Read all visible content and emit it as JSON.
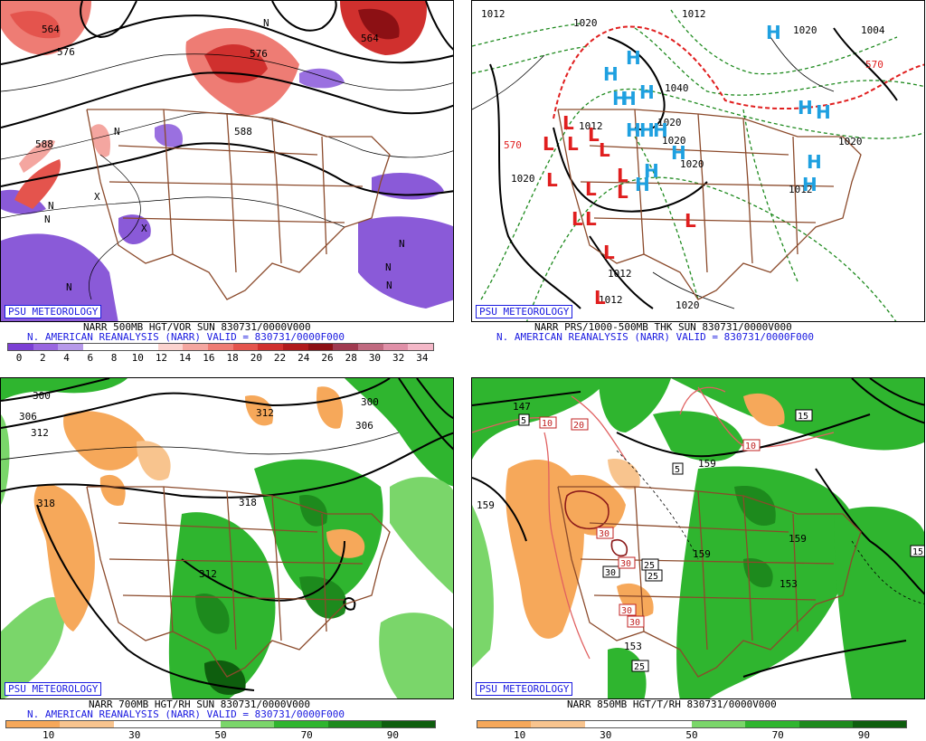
{
  "panels": {
    "p500": {
      "logo": "PSU METEOROLOGY",
      "title_line1": "NARR 500MB HGT/VOR SUN 830731/0000V000",
      "title_line2": "N. AMERICAN REANALYSIS (NARR) VALID = 830731/0000F000",
      "colorbar_ticks": [
        "0",
        "2",
        "4",
        "6",
        "8",
        "10",
        "12",
        "14",
        "16",
        "18",
        "20",
        "22",
        "24",
        "26",
        "28",
        "30",
        "32",
        "34"
      ],
      "colorbar_colors": [
        "#7b3fd4",
        "#9966e0",
        "#b699ea",
        "#ffffff",
        "#ffffff",
        "#ffffff",
        "#fbd3cf",
        "#f4a6a0",
        "#ee7c74",
        "#e4544d",
        "#d0302e",
        "#b01a1c",
        "#8c1014",
        "#a03a50",
        "#c06a80",
        "#e090a8",
        "#f4b8c8"
      ],
      "contour_labels": [
        "564",
        "576",
        "588",
        "588",
        "576",
        "564"
      ],
      "vorticity_letters": [
        "N",
        "N",
        "N",
        "N",
        "N",
        "N",
        "X",
        "X",
        "N",
        "N"
      ]
    },
    "p1000": {
      "logo": "PSU METEOROLOGY",
      "title_line1": "NARR PRS/1000-500MB THK SUN 830731/0000V000",
      "title_line2": "N. AMERICAN REANALYSIS (NARR) VALID = 830731/0000F000",
      "isobar_labels": [
        "1012",
        "1020",
        "1012",
        "1020",
        "1004",
        "1040",
        "1020",
        "1012",
        "1020",
        "1020",
        "1020",
        "1012",
        "1012",
        "1020",
        "1020",
        "1012"
      ],
      "thickness_labels": [
        "570",
        "570"
      ],
      "high_letter": "H",
      "low_letter": "L"
    },
    "p700": {
      "logo": "PSU METEOROLOGY",
      "title_line1": "NARR 700MB HGT/RH SUN 830731/0000V000",
      "title_line2": "N. AMERICAN REANALYSIS (NARR) VALID = 830731/0000F000",
      "colorbar_ticks": [
        "10",
        "30",
        "50",
        "70",
        "90"
      ],
      "colorbar_colors": [
        "#f6a85a",
        "#f8c48e",
        "#ffffff",
        "#ffffff",
        "#7ad66a",
        "#2fb52f",
        "#1d8a1d",
        "#0e5e0e"
      ],
      "contour_labels": [
        "300",
        "306",
        "312",
        "318",
        "312",
        "300",
        "306",
        "318",
        "312"
      ]
    },
    "p850": {
      "logo": "PSU METEOROLOGY",
      "title_line1": "NARR 850MB HGT/T/RH 830731/0000V000",
      "colorbar_ticks": [
        "10",
        "30",
        "50",
        "70",
        "90"
      ],
      "colorbar_colors": [
        "#f6a85a",
        "#f8c48e",
        "#ffffff",
        "#ffffff",
        "#7ad66a",
        "#2fb52f",
        "#1d8a1d",
        "#0e5e0e"
      ],
      "height_labels": [
        "147",
        "159",
        "153",
        "159",
        "159",
        "159",
        "153"
      ],
      "temp_boxes": [
        "5",
        "10",
        "20",
        "15",
        "10",
        "5",
        "30",
        "30",
        "30",
        "25",
        "25",
        "30",
        "30",
        "25",
        "15"
      ]
    }
  }
}
